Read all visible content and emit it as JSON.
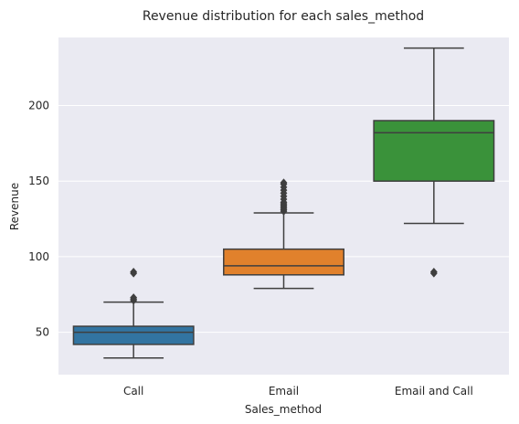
{
  "chart_data": {
    "type": "box",
    "title": "Revenue distribution for each sales_method",
    "xlabel": "Sales_method",
    "ylabel": "Revenue",
    "ylim": [
      22,
      245
    ],
    "yticks": [
      50,
      100,
      150,
      200
    ],
    "grid": true,
    "categories": [
      "Call",
      "Email",
      "Email and Call"
    ],
    "colors": [
      "#3274a1",
      "#e1812c",
      "#3a923a"
    ],
    "boxes": [
      {
        "category": "Call",
        "whisker_low": 33,
        "q1": 42,
        "median": 50,
        "q3": 54,
        "whisker_high": 70,
        "outliers": [
          71,
          72,
          73,
          89,
          90
        ]
      },
      {
        "category": "Email",
        "whisker_low": 79,
        "q1": 88,
        "median": 94,
        "q3": 105,
        "whisker_high": 129,
        "outliers": [
          130,
          131,
          132,
          133,
          134,
          135,
          136,
          138,
          140,
          142,
          144,
          146,
          148,
          149
        ]
      },
      {
        "category": "Email and Call",
        "whisker_low": 122,
        "q1": 150,
        "median": 182,
        "q3": 190,
        "whisker_high": 238,
        "outliers": [
          89,
          90
        ]
      }
    ]
  }
}
